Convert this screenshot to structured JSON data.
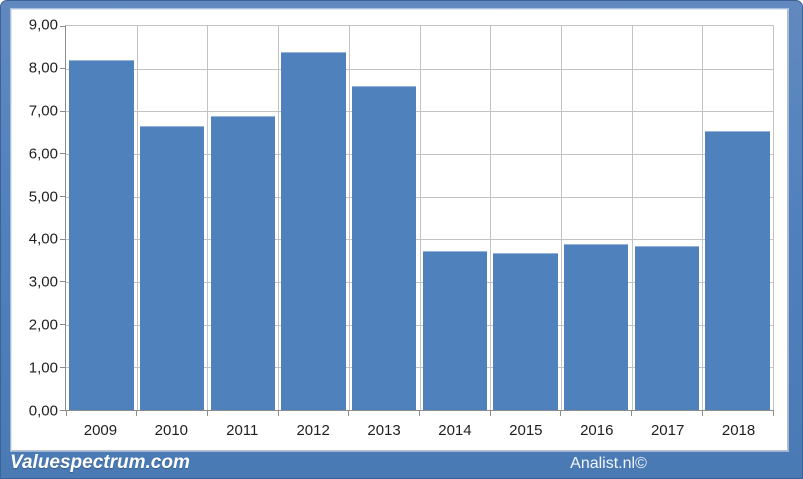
{
  "footer": {
    "brand": "Valuespectrum.com",
    "credit": "Analist.nl©",
    "band_color": "#4f81bd"
  },
  "chart_data": {
    "type": "bar",
    "categories": [
      "2009",
      "2010",
      "2011",
      "2012",
      "2013",
      "2014",
      "2015",
      "2016",
      "2017",
      "2018"
    ],
    "values": [
      8.2,
      6.65,
      6.9,
      8.4,
      7.6,
      3.73,
      3.67,
      3.9,
      3.85,
      6.55
    ],
    "ylim": [
      0,
      9
    ],
    "ytick_interval": 1,
    "ytick_labels": [
      "0,00",
      "1,00",
      "2,00",
      "3,00",
      "4,00",
      "5,00",
      "6,00",
      "7,00",
      "8,00",
      "9,00"
    ],
    "grid": true,
    "legend": false,
    "bar_color": "#4f81bd",
    "gridline_color": "#c3c3c3",
    "axis_color": "#8c8c8c",
    "label_color": "#1f1f1f",
    "frame_color": "#5181bd"
  }
}
